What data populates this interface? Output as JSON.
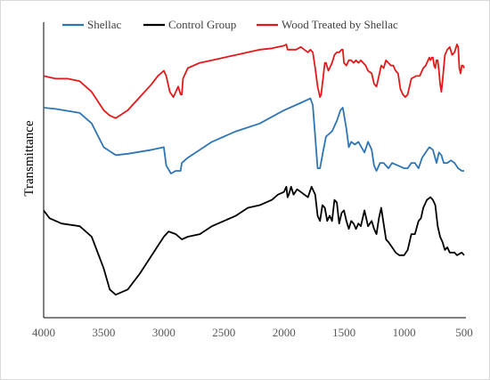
{
  "chart_data": {
    "type": "line",
    "title": "",
    "xlabel": "",
    "ylabel": "Transmittance",
    "xlim": [
      4000,
      500
    ],
    "x_reversed": true,
    "x_ticks": [
      4000,
      3500,
      3000,
      2500,
      2000,
      1500,
      1000,
      500
    ],
    "grid": false,
    "legend_position": "top",
    "series": [
      {
        "name": "Shellac",
        "color": "#2E75B6",
        "points": [
          [
            4000,
            81
          ],
          [
            3900,
            80.5
          ],
          [
            3700,
            79
          ],
          [
            3600,
            75
          ],
          [
            3500,
            66
          ],
          [
            3400,
            63
          ],
          [
            3300,
            63.5
          ],
          [
            3100,
            65
          ],
          [
            3000,
            66
          ],
          [
            2980,
            59
          ],
          [
            2940,
            56
          ],
          [
            2900,
            57
          ],
          [
            2860,
            57
          ],
          [
            2850,
            60
          ],
          [
            2800,
            62
          ],
          [
            2600,
            68
          ],
          [
            2400,
            72
          ],
          [
            2200,
            75
          ],
          [
            2000,
            80
          ],
          [
            1900,
            82
          ],
          [
            1850,
            83
          ],
          [
            1780,
            84.5
          ],
          [
            1760,
            82
          ],
          [
            1740,
            70
          ],
          [
            1720,
            58
          ],
          [
            1700,
            58
          ],
          [
            1680,
            63
          ],
          [
            1650,
            70
          ],
          [
            1600,
            72
          ],
          [
            1560,
            76
          ],
          [
            1530,
            80
          ],
          [
            1510,
            81
          ],
          [
            1480,
            73
          ],
          [
            1460,
            66
          ],
          [
            1440,
            68
          ],
          [
            1410,
            67
          ],
          [
            1380,
            68
          ],
          [
            1330,
            64
          ],
          [
            1300,
            68
          ],
          [
            1270,
            65
          ],
          [
            1250,
            59
          ],
          [
            1230,
            57
          ],
          [
            1200,
            60
          ],
          [
            1170,
            60
          ],
          [
            1130,
            58
          ],
          [
            1100,
            60
          ],
          [
            1050,
            59
          ],
          [
            1000,
            58
          ],
          [
            970,
            58
          ],
          [
            940,
            60
          ],
          [
            910,
            60
          ],
          [
            880,
            58
          ],
          [
            850,
            62
          ],
          [
            820,
            64
          ],
          [
            790,
            66
          ],
          [
            760,
            65
          ],
          [
            730,
            60
          ],
          [
            710,
            64
          ],
          [
            690,
            63
          ],
          [
            670,
            60
          ],
          [
            640,
            60
          ],
          [
            610,
            61
          ],
          [
            580,
            60
          ],
          [
            550,
            58
          ],
          [
            520,
            57
          ],
          [
            500,
            57
          ]
        ]
      },
      {
        "name": "Control Group",
        "color": "#000000",
        "points": [
          [
            4000,
            42
          ],
          [
            3950,
            39
          ],
          [
            3850,
            37
          ],
          [
            3700,
            36
          ],
          [
            3650,
            34
          ],
          [
            3600,
            32
          ],
          [
            3500,
            20
          ],
          [
            3450,
            12
          ],
          [
            3400,
            10
          ],
          [
            3300,
            12
          ],
          [
            3200,
            18
          ],
          [
            3100,
            25
          ],
          [
            3000,
            32
          ],
          [
            2960,
            34
          ],
          [
            2900,
            33
          ],
          [
            2850,
            31
          ],
          [
            2800,
            32
          ],
          [
            2700,
            33
          ],
          [
            2600,
            36
          ],
          [
            2500,
            38
          ],
          [
            2400,
            40
          ],
          [
            2300,
            43
          ],
          [
            2200,
            44
          ],
          [
            2100,
            46
          ],
          [
            2050,
            48
          ],
          [
            2000,
            49
          ],
          [
            1980,
            51
          ],
          [
            1970,
            47
          ],
          [
            1960,
            48
          ],
          [
            1940,
            51
          ],
          [
            1920,
            48
          ],
          [
            1890,
            50
          ],
          [
            1860,
            49
          ],
          [
            1830,
            48
          ],
          [
            1800,
            47
          ],
          [
            1770,
            51
          ],
          [
            1740,
            48
          ],
          [
            1720,
            40
          ],
          [
            1700,
            38
          ],
          [
            1680,
            44
          ],
          [
            1660,
            43
          ],
          [
            1640,
            38
          ],
          [
            1620,
            40
          ],
          [
            1600,
            38
          ],
          [
            1580,
            46
          ],
          [
            1560,
            45
          ],
          [
            1540,
            37
          ],
          [
            1520,
            41
          ],
          [
            1500,
            42
          ],
          [
            1480,
            38
          ],
          [
            1460,
            35
          ],
          [
            1440,
            38
          ],
          [
            1420,
            37
          ],
          [
            1400,
            35
          ],
          [
            1380,
            37
          ],
          [
            1360,
            36
          ],
          [
            1330,
            42
          ],
          [
            1300,
            36
          ],
          [
            1270,
            38
          ],
          [
            1250,
            35
          ],
          [
            1230,
            33
          ],
          [
            1210,
            39
          ],
          [
            1190,
            43
          ],
          [
            1170,
            37
          ],
          [
            1150,
            31
          ],
          [
            1130,
            30
          ],
          [
            1100,
            28
          ],
          [
            1070,
            26
          ],
          [
            1040,
            25
          ],
          [
            1000,
            25
          ],
          [
            970,
            27
          ],
          [
            940,
            33
          ],
          [
            910,
            33
          ],
          [
            880,
            38
          ],
          [
            860,
            39
          ],
          [
            840,
            43
          ],
          [
            810,
            46
          ],
          [
            780,
            47
          ],
          [
            760,
            46
          ],
          [
            740,
            44
          ],
          [
            720,
            36
          ],
          [
            700,
            32
          ],
          [
            680,
            30
          ],
          [
            660,
            27
          ],
          [
            640,
            28
          ],
          [
            620,
            26
          ],
          [
            600,
            26
          ],
          [
            580,
            26
          ],
          [
            560,
            25
          ],
          [
            520,
            26
          ],
          [
            500,
            25
          ]
        ]
      },
      {
        "name": "Wood Treated by Shellac",
        "color": "#E31A1C",
        "points": [
          [
            4000,
            93
          ],
          [
            3900,
            92
          ],
          [
            3800,
            92
          ],
          [
            3700,
            91
          ],
          [
            3600,
            87
          ],
          [
            3500,
            80
          ],
          [
            3450,
            78
          ],
          [
            3400,
            77
          ],
          [
            3300,
            80
          ],
          [
            3200,
            85
          ],
          [
            3100,
            90
          ],
          [
            3050,
            93
          ],
          [
            3000,
            95
          ],
          [
            2980,
            93
          ],
          [
            2950,
            87
          ],
          [
            2920,
            85
          ],
          [
            2900,
            87
          ],
          [
            2880,
            89
          ],
          [
            2860,
            86
          ],
          [
            2850,
            86
          ],
          [
            2840,
            92
          ],
          [
            2800,
            96
          ],
          [
            2700,
            98
          ],
          [
            2600,
            99
          ],
          [
            2500,
            100
          ],
          [
            2400,
            101
          ],
          [
            2300,
            102
          ],
          [
            2200,
            103
          ],
          [
            2100,
            103.5
          ],
          [
            2050,
            104
          ],
          [
            2000,
            104.5
          ],
          [
            1980,
            105
          ],
          [
            1970,
            103
          ],
          [
            1950,
            103
          ],
          [
            1900,
            103
          ],
          [
            1860,
            104
          ],
          [
            1830,
            103
          ],
          [
            1800,
            102
          ],
          [
            1780,
            103
          ],
          [
            1760,
            102
          ],
          [
            1740,
            96
          ],
          [
            1720,
            89
          ],
          [
            1700,
            85
          ],
          [
            1690,
            86
          ],
          [
            1660,
            98
          ],
          [
            1650,
            98
          ],
          [
            1630,
            95
          ],
          [
            1600,
            98
          ],
          [
            1580,
            101
          ],
          [
            1560,
            102
          ],
          [
            1540,
            102
          ],
          [
            1520,
            103
          ],
          [
            1510,
            103
          ],
          [
            1500,
            98
          ],
          [
            1480,
            97
          ],
          [
            1460,
            99
          ],
          [
            1440,
            99
          ],
          [
            1420,
            98
          ],
          [
            1400,
            99
          ],
          [
            1380,
            98
          ],
          [
            1360,
            99
          ],
          [
            1340,
            98
          ],
          [
            1320,
            97
          ],
          [
            1300,
            95
          ],
          [
            1270,
            94
          ],
          [
            1250,
            90
          ],
          [
            1230,
            89
          ],
          [
            1210,
            93
          ],
          [
            1190,
            97
          ],
          [
            1170,
            96
          ],
          [
            1150,
            99
          ],
          [
            1130,
            98
          ],
          [
            1110,
            97
          ],
          [
            1090,
            97
          ],
          [
            1070,
            95
          ],
          [
            1050,
            94
          ],
          [
            1030,
            88
          ],
          [
            1010,
            86
          ],
          [
            990,
            85
          ],
          [
            970,
            86
          ],
          [
            940,
            92
          ],
          [
            900,
            93
          ],
          [
            870,
            93
          ],
          [
            840,
            96
          ],
          [
            820,
            97
          ],
          [
            800,
            99
          ],
          [
            790,
            100
          ],
          [
            780,
            99
          ],
          [
            770,
            100
          ],
          [
            760,
            100
          ],
          [
            750,
            97
          ],
          [
            740,
            96
          ],
          [
            730,
            99
          ],
          [
            720,
            99
          ],
          [
            710,
            95
          ],
          [
            700,
            90
          ],
          [
            690,
            87
          ],
          [
            680,
            91
          ],
          [
            660,
            101
          ],
          [
            640,
            103
          ],
          [
            620,
            104
          ],
          [
            600,
            101
          ],
          [
            580,
            102
          ],
          [
            560,
            105
          ],
          [
            550,
            104
          ],
          [
            540,
            96
          ],
          [
            530,
            94
          ],
          [
            520,
            97
          ],
          [
            510,
            97
          ],
          [
            500,
            96
          ]
        ]
      }
    ]
  }
}
